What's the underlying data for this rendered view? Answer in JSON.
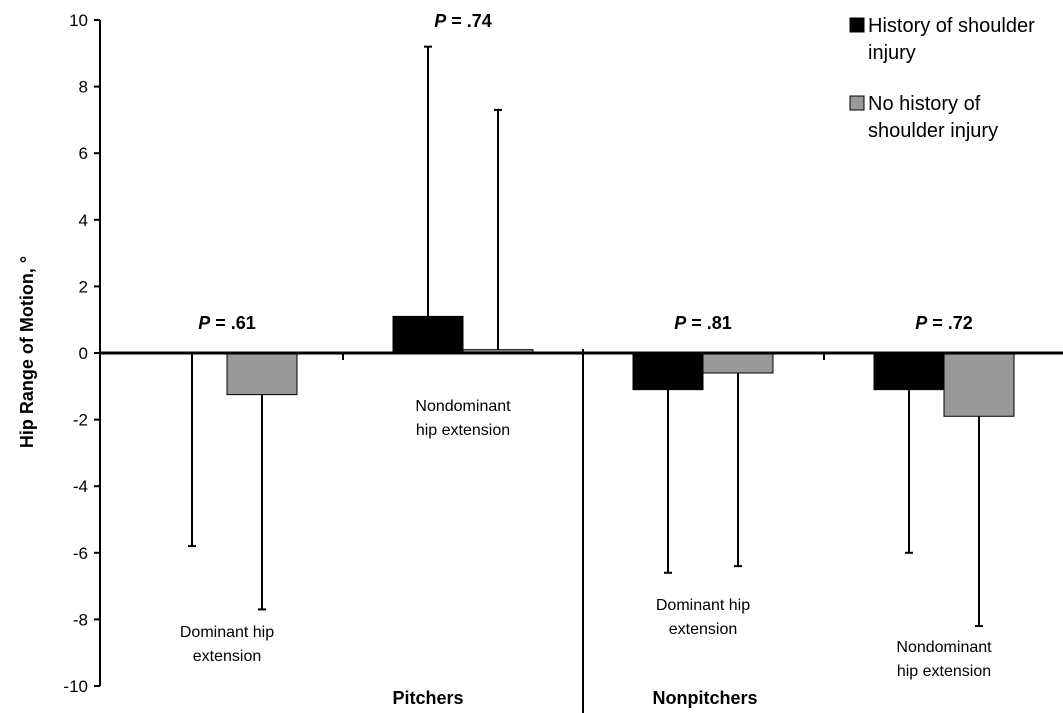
{
  "chart_data": {
    "type": "bar",
    "ylabel": "Hip Range of Motion, °",
    "ylim": [
      -10,
      10
    ],
    "yticks": [
      10,
      8,
      6,
      4,
      2,
      0,
      -2,
      -4,
      -6,
      -8,
      -10
    ],
    "legend_position": "top-right",
    "groups": [
      {
        "label": "Pitchers",
        "categories": [
          0,
          1
        ]
      },
      {
        "label": "Nonpitchers",
        "categories": [
          2,
          3
        ]
      }
    ],
    "categories": [
      {
        "label_lines": [
          "Dominant hip",
          "extension"
        ],
        "p_prefix": "P",
        "p_value": " = .61"
      },
      {
        "label_lines": [
          "Nondominant",
          "hip extension"
        ],
        "p_prefix": "P",
        "p_value": " = .74"
      },
      {
        "label_lines": [
          "Dominant hip",
          "extension"
        ],
        "p_prefix": "P",
        "p_value": " = .81"
      },
      {
        "label_lines": [
          "Nondominant",
          "hip extension"
        ],
        "p_prefix": "P",
        "p_value": " = .72"
      }
    ],
    "series": [
      {
        "name_lines": [
          "History of shoulder",
          "injury"
        ],
        "color": "#000000",
        "values": [
          0.0,
          1.1,
          -1.1,
          -1.1
        ],
        "error_ends": [
          -5.8,
          9.2,
          -6.6,
          -6.0
        ]
      },
      {
        "name_lines": [
          "No history of",
          "shoulder injury"
        ],
        "color": "#999999",
        "values": [
          -1.25,
          0.1,
          -0.6,
          -1.9
        ],
        "error_ends": [
          -7.7,
          7.3,
          -6.4,
          -8.2
        ]
      }
    ]
  }
}
